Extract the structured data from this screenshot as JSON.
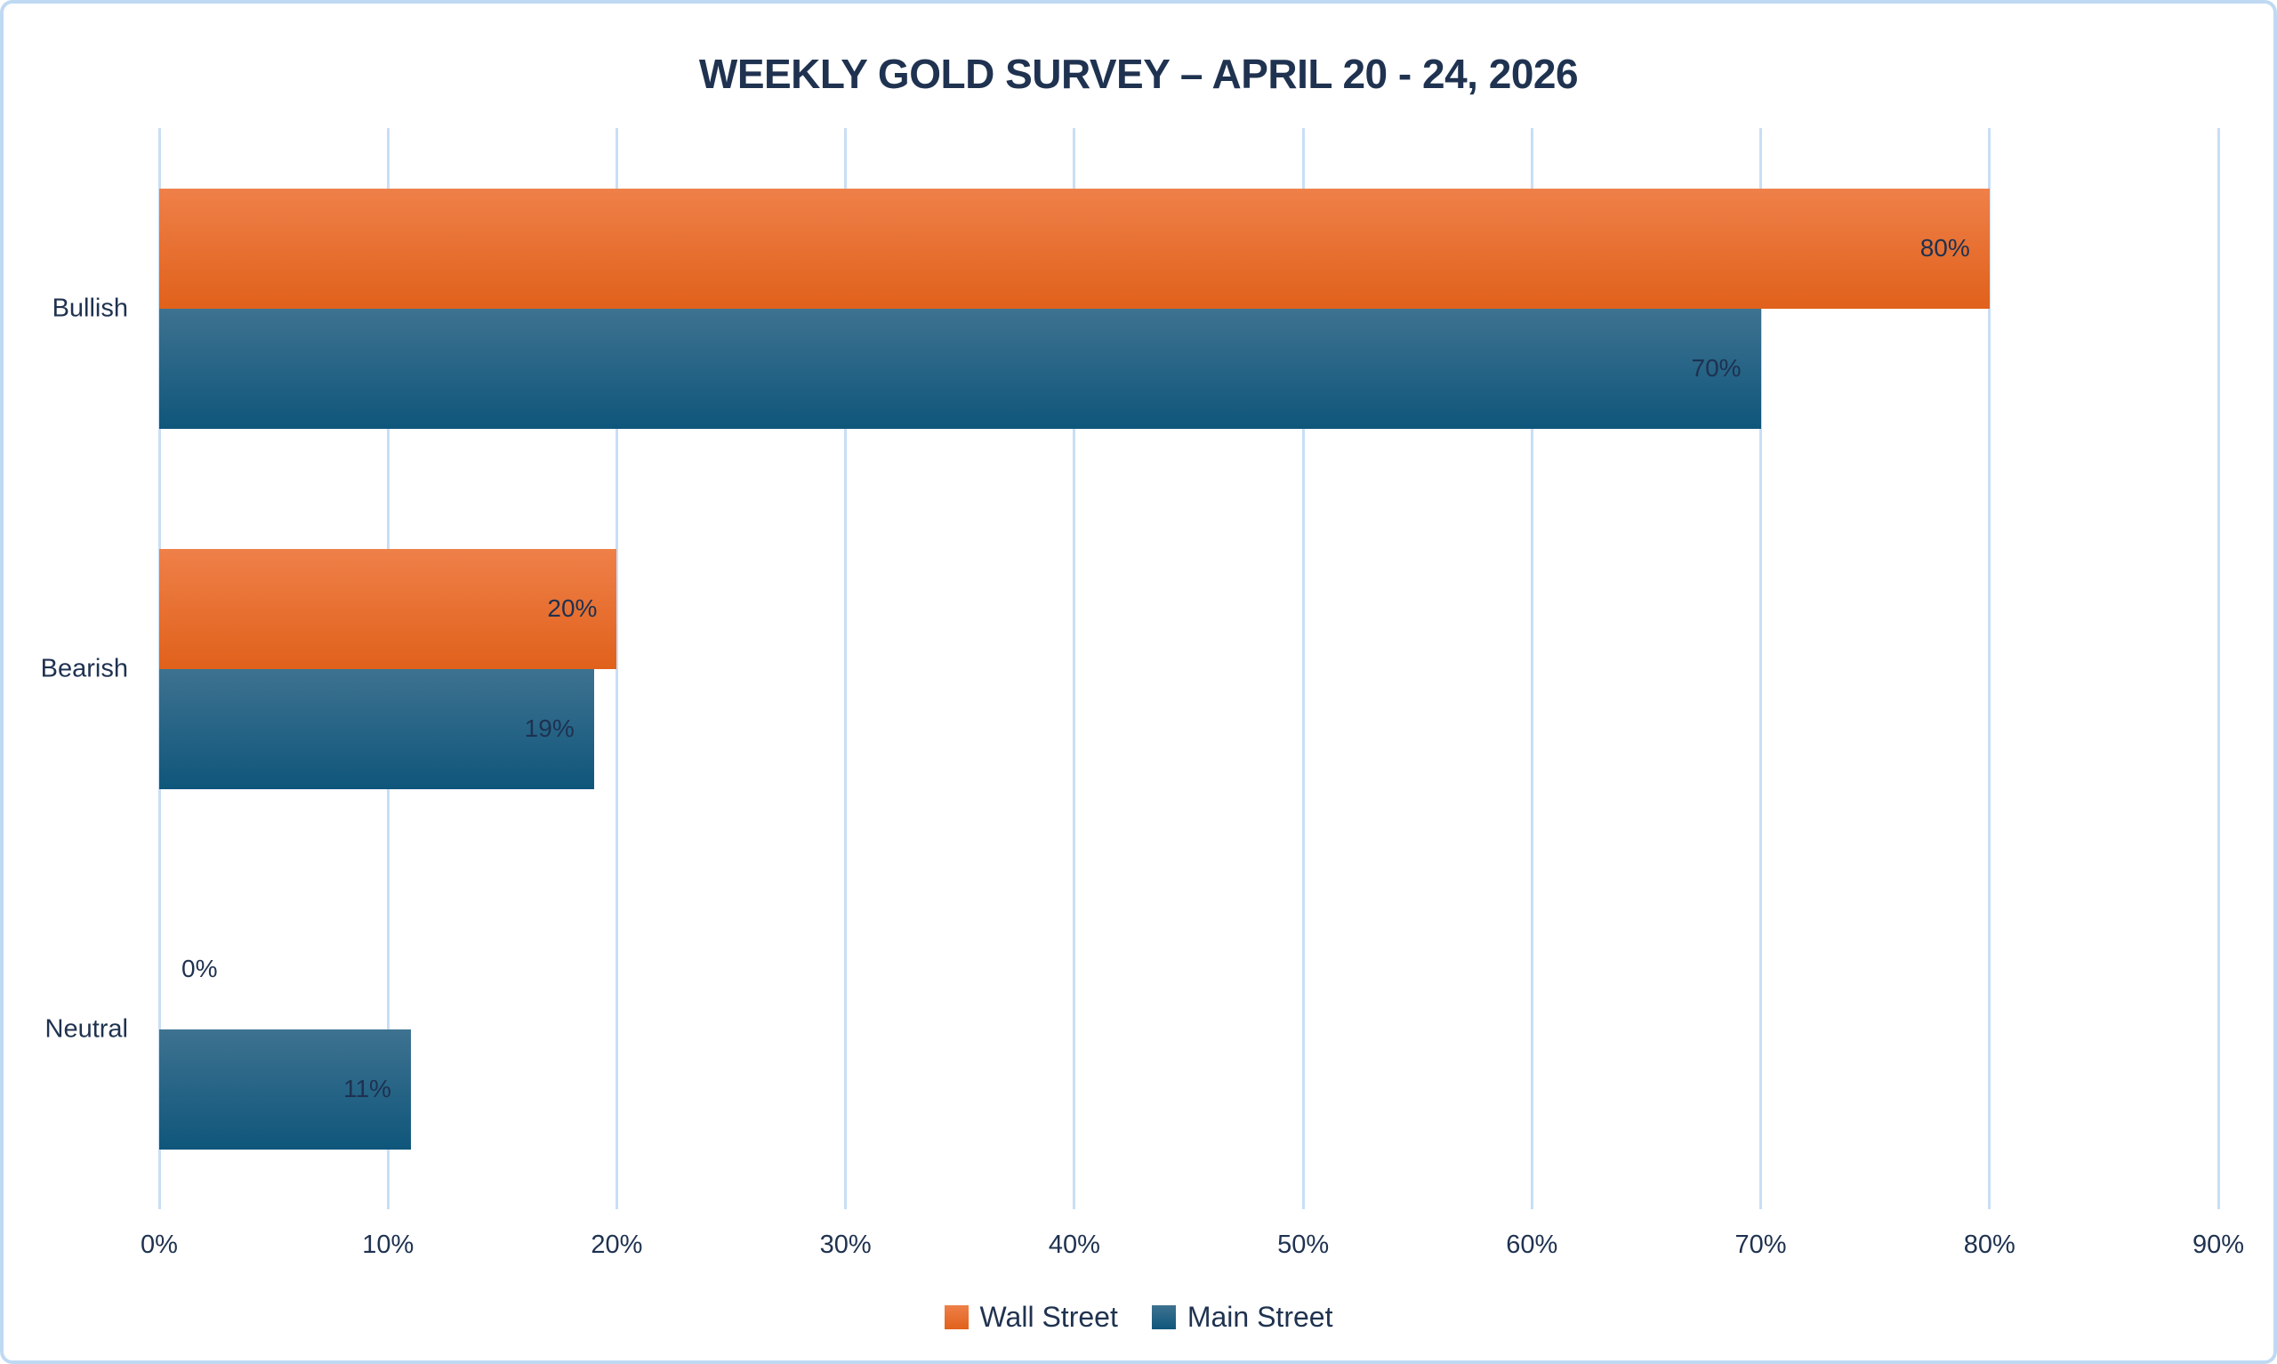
{
  "chart_data": {
    "type": "bar",
    "orientation": "horizontal",
    "title": "WEEKLY GOLD SURVEY – APRIL 20 - 24, 2026",
    "categories": [
      "Bullish",
      "Bearish",
      "Neutral"
    ],
    "series": [
      {
        "name": "Wall Street",
        "values": [
          80,
          20,
          0
        ],
        "data_labels": [
          "80%",
          "20%",
          "0%"
        ],
        "color_top": "#EF8049",
        "color_bottom": "#E0611B"
      },
      {
        "name": "Main Street",
        "values": [
          70,
          19,
          11
        ],
        "data_labels": [
          "70%",
          "19%",
          "11%"
        ],
        "color_top": "#3E7290",
        "color_bottom": "#0F567B"
      }
    ],
    "xlabel": "",
    "ylabel": "",
    "xlim": [
      0,
      90
    ],
    "x_tick_step": 10,
    "x_tick_labels": [
      "0%",
      "10%",
      "20%",
      "30%",
      "40%",
      "50%",
      "60%",
      "70%",
      "80%",
      "90%"
    ],
    "grid": "vertical-only",
    "legend_position": "bottom-center"
  },
  "colors": {
    "title_text": "#1F3250",
    "label_text": "#1E3150",
    "gridline": "#C9DEF5",
    "chart_border": "#BFD9F2",
    "background": "#FFFFFF"
  }
}
